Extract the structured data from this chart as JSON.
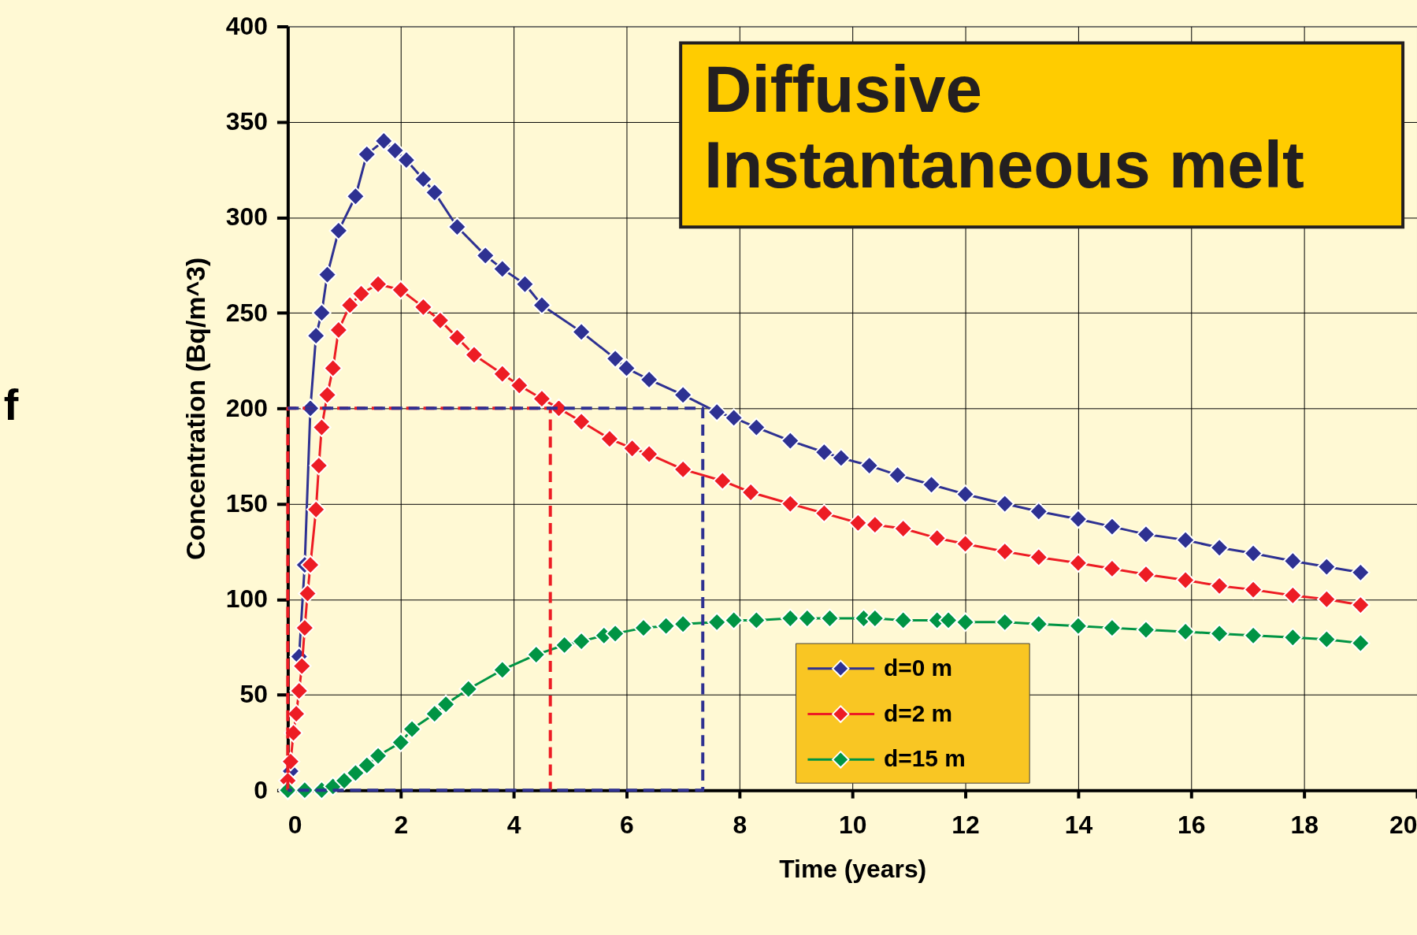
{
  "chart_data": {
    "type": "line",
    "xlabel": "Time (years)",
    "ylabel": "Concentration (Bq/m^3)",
    "xlim": [
      0,
      20
    ],
    "xticks": [
      0,
      2,
      4,
      6,
      8,
      10,
      12,
      14,
      16,
      18,
      20
    ],
    "ylim": [
      0,
      400
    ],
    "yticks": [
      0,
      50,
      100,
      150,
      200,
      250,
      300,
      350,
      400
    ],
    "grid": true,
    "legend": "bottom",
    "marker": "diamond",
    "line_style": "solid",
    "annotations": [
      "f",
      "Diffusive\nInstantaneous melt"
    ],
    "series": [
      {
        "name": "d=0 m",
        "color": "#2e3192",
        "x": [
          0,
          0.05,
          0.1,
          0.2,
          0.3,
          0.4,
          0.5,
          0.6,
          0.7,
          0.9,
          1.2,
          1.4,
          1.7,
          1.9,
          2.1,
          2.4,
          2.6,
          3.0,
          3.5,
          3.8,
          4.2,
          4.5,
          5.2,
          5.8,
          6.0,
          6.4,
          7.0,
          7.6,
          7.9,
          8.3,
          8.9,
          9.5,
          9.8,
          10.3,
          10.8,
          11.4,
          12.0,
          12.7,
          13.3,
          14.0,
          14.6,
          15.2,
          15.9,
          16.5,
          17.1,
          17.8,
          18.4,
          19.0
        ],
        "values": [
          0,
          10,
          null,
          70,
          118,
          200,
          238,
          250,
          270,
          293,
          311,
          333,
          340,
          335,
          330,
          320,
          313,
          295,
          280,
          273,
          265,
          254,
          240,
          226,
          221,
          215,
          207,
          198,
          195,
          190,
          183,
          177,
          174,
          170,
          165,
          160,
          155,
          150,
          146,
          142,
          138,
          134,
          131,
          127,
          124,
          120,
          117,
          114
        ]
      },
      {
        "name": "d=2 m",
        "color": "#ed1c24",
        "x": [
          0,
          0.05,
          0.1,
          0.15,
          0.2,
          0.25,
          0.3,
          0.35,
          0.4,
          0.5,
          0.55,
          0.6,
          0.7,
          0.8,
          0.9,
          1.1,
          1.3,
          1.6,
          2.0,
          2.4,
          2.7,
          3.0,
          3.3,
          3.8,
          4.1,
          4.5,
          4.8,
          5.2,
          5.7,
          6.1,
          6.4,
          7.0,
          7.7,
          8.2,
          8.9,
          9.5,
          10.1,
          10.4,
          10.9,
          11.5,
          12.0,
          12.7,
          13.3,
          14.0,
          14.6,
          15.2,
          15.9,
          16.5,
          17.1,
          17.8,
          18.4,
          19.0
        ],
        "values": [
          5,
          15,
          30,
          40,
          52,
          65,
          85,
          103,
          118,
          147,
          170,
          190,
          207,
          221,
          241,
          254,
          260,
          265,
          262,
          253,
          246,
          237,
          228,
          218,
          212,
          205,
          200,
          193,
          184,
          179,
          176,
          168,
          162,
          156,
          150,
          145,
          140,
          139,
          137,
          132,
          129,
          125,
          122,
          119,
          116,
          113,
          110,
          107,
          105,
          102,
          100,
          97
        ]
      },
      {
        "name": "d=15 m",
        "color": "#009444",
        "x": [
          0,
          0.3,
          0.6,
          0.8,
          1.0,
          1.2,
          1.4,
          1.6,
          2.0,
          2.2,
          2.6,
          2.8,
          3.2,
          3.8,
          4.4,
          4.9,
          5.2,
          5.6,
          5.8,
          6.3,
          6.7,
          7.0,
          7.6,
          7.9,
          8.3,
          8.9,
          9.2,
          9.6,
          10.2,
          10.4,
          10.9,
          11.5,
          11.7,
          12.0,
          12.7,
          13.3,
          14.0,
          14.6,
          15.2,
          15.9,
          16.5,
          17.1,
          17.8,
          18.4,
          19.0
        ],
        "values": [
          0,
          0,
          0,
          2,
          5,
          9,
          13,
          18,
          25,
          32,
          40,
          45,
          53,
          63,
          71,
          76,
          78,
          81,
          82,
          85,
          86,
          87,
          88,
          89,
          89,
          90,
          90,
          90,
          90,
          90,
          89,
          89,
          89,
          88,
          88,
          87,
          86,
          85,
          84,
          83,
          82,
          81,
          80,
          79,
          77
        ]
      },
      {
        "type": "line",
        "color": "#ed1c24",
        "line_style": "dashed",
        "marker": "none",
        "x": [
          0,
          0,
          4.65,
          4.65
        ],
        "values": [
          0,
          200,
          200,
          0
        ]
      },
      {
        "type": "line",
        "color": "#2e3192",
        "line_style": "dashed",
        "marker": "none",
        "x": [
          0,
          7.35,
          7.35,
          0
        ],
        "values": [
          200,
          200,
          0,
          0
        ]
      }
    ]
  }
}
